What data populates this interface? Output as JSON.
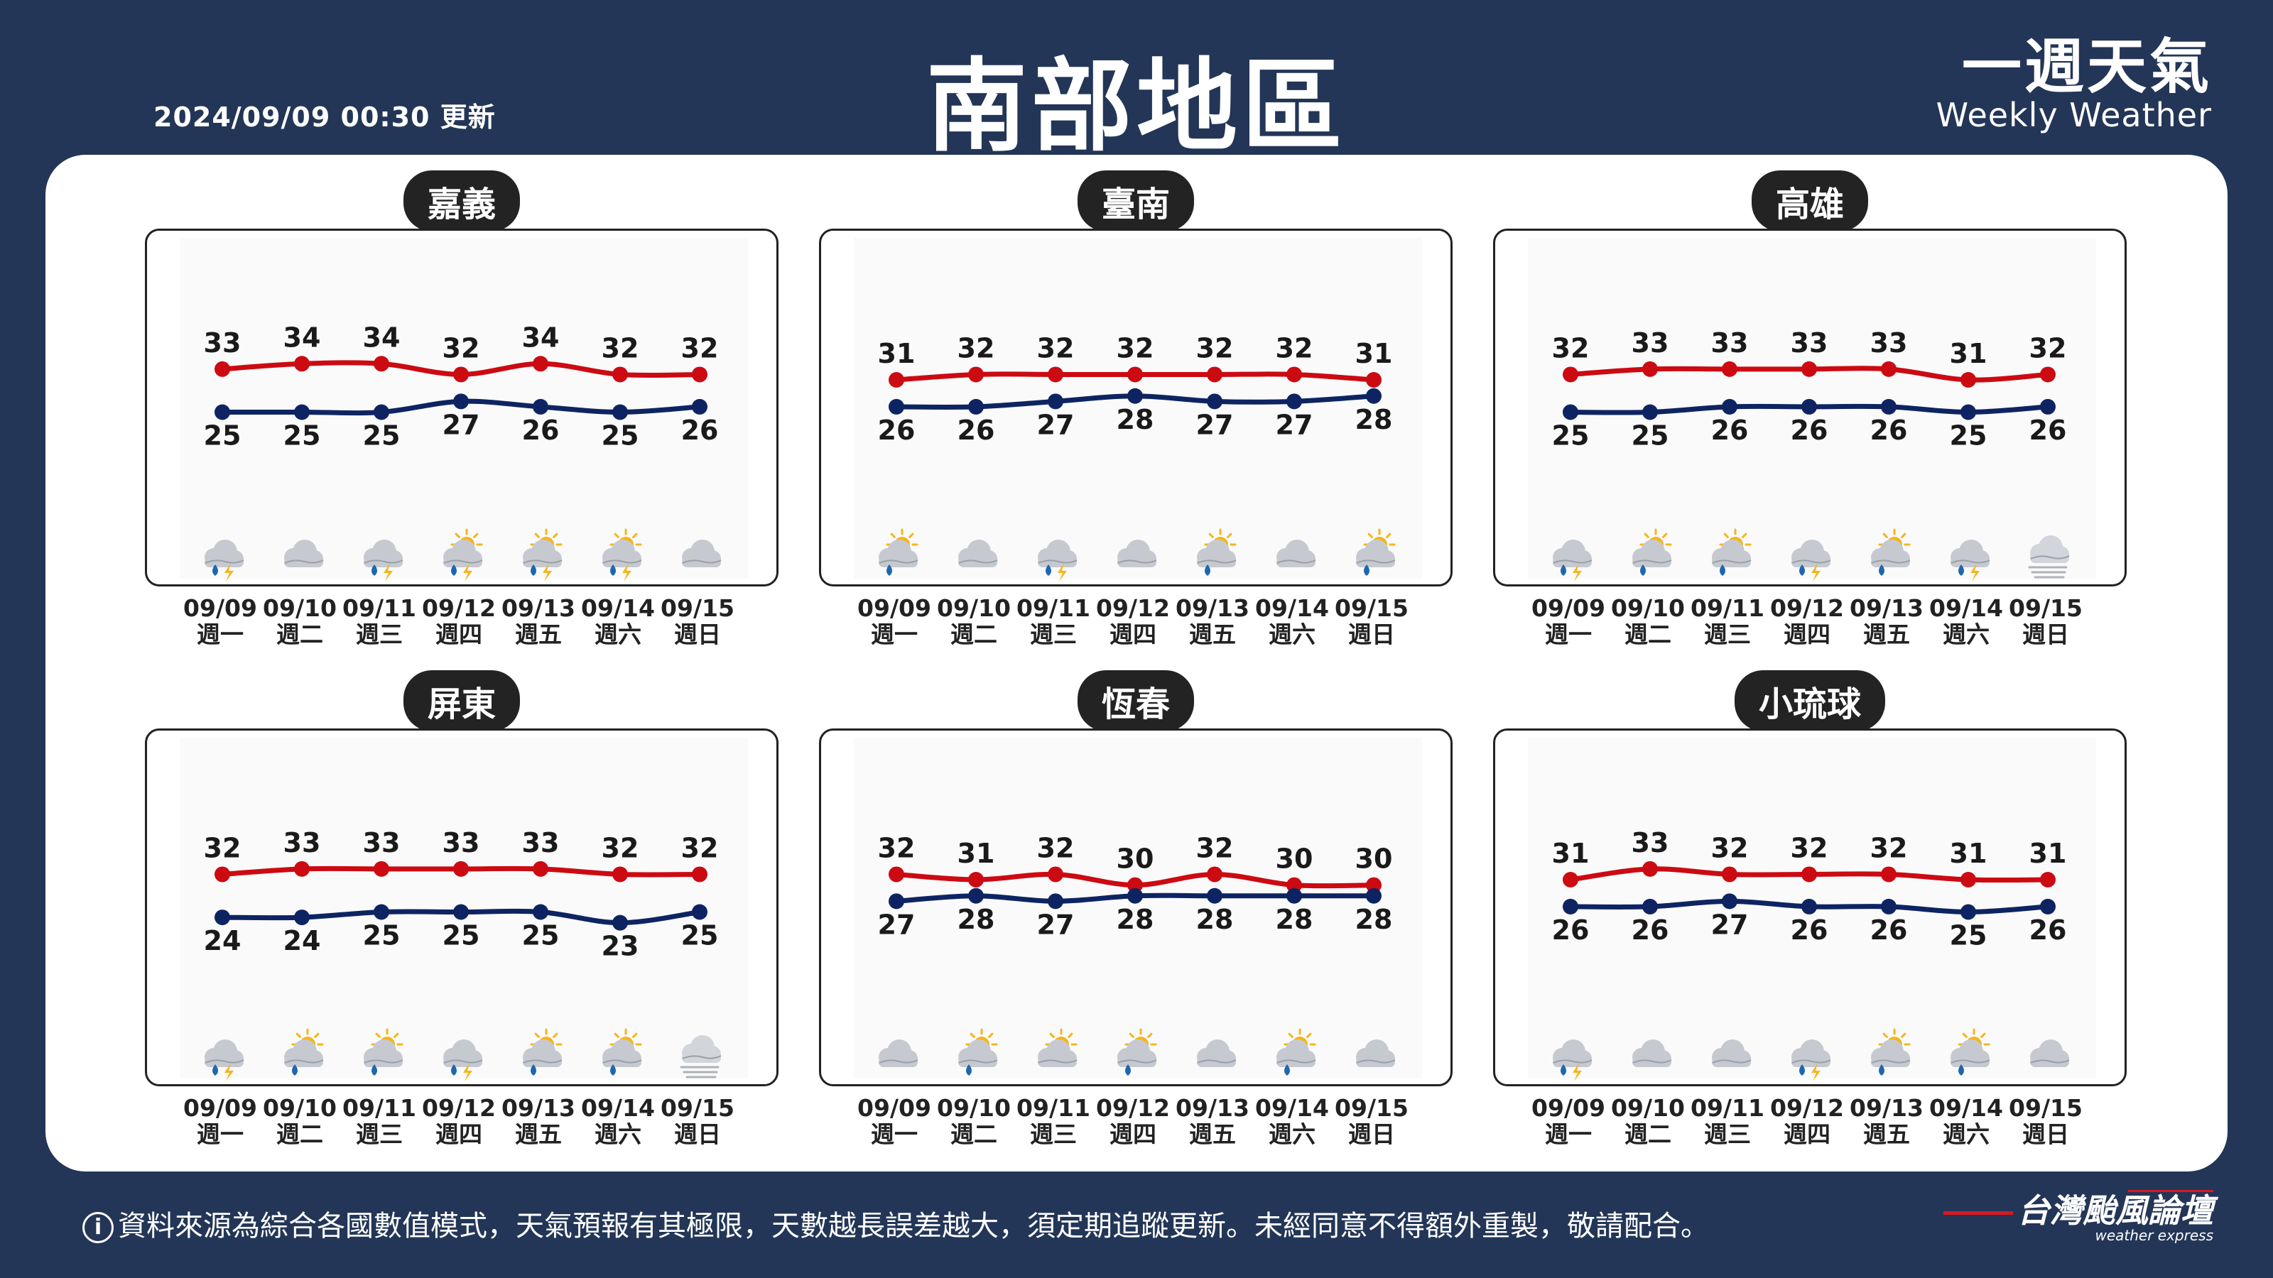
{
  "header": {
    "updated": "2024/09/09 00:30 更新",
    "title": "南部地區",
    "brand_zh": "一週天氣",
    "brand_en": "Weekly Weather"
  },
  "footer": {
    "info_icon": "i",
    "note": "資料來源為綜合各國數值模式，天氣預報有其極限，天數越長誤差越大，須定期追蹤更新。未經同意不得額外重製，敬請配合。",
    "logo": "台灣颱風論壇",
    "logo_sub": "weather express"
  },
  "colors": {
    "background": "#233657",
    "high_line": "#cc0a12",
    "low_line": "#0e2462",
    "title_pill": "#232323"
  },
  "chart_data": [
    {
      "type": "line",
      "title": "嘉義",
      "x": [
        "09/09",
        "09/10",
        "09/11",
        "09/12",
        "09/13",
        "09/14",
        "09/15"
      ],
      "weekday": [
        "週一",
        "週二",
        "週三",
        "週四",
        "週五",
        "週六",
        "週日"
      ],
      "series": [
        {
          "values": [
            33,
            34,
            34,
            32,
            34,
            32,
            32
          ]
        },
        {
          "values": [
            25,
            25,
            25,
            27,
            26,
            25,
            26
          ]
        }
      ],
      "icons": [
        "thunder-rain-icon",
        "cloudy-icon",
        "thunder-rain-icon",
        "sun-thunder-rain-icon",
        "sun-thunder-rain-icon",
        "sun-thunder-rain-icon",
        "cloudy-icon"
      ]
    },
    {
      "type": "line",
      "title": "臺南",
      "x": [
        "09/09",
        "09/10",
        "09/11",
        "09/12",
        "09/13",
        "09/14",
        "09/15"
      ],
      "weekday": [
        "週一",
        "週二",
        "週三",
        "週四",
        "週五",
        "週六",
        "週日"
      ],
      "series": [
        {
          "values": [
            31,
            32,
            32,
            32,
            32,
            32,
            31
          ]
        },
        {
          "values": [
            26,
            26,
            27,
            28,
            27,
            27,
            28
          ]
        }
      ],
      "icons": [
        "sun-rain-icon",
        "cloudy-icon",
        "thunder-rain-icon",
        "cloudy-icon",
        "sun-rain-icon",
        "cloudy-icon",
        "sun-rain-icon"
      ]
    },
    {
      "type": "line",
      "title": "高雄",
      "x": [
        "09/09",
        "09/10",
        "09/11",
        "09/12",
        "09/13",
        "09/14",
        "09/15"
      ],
      "weekday": [
        "週一",
        "週二",
        "週三",
        "週四",
        "週五",
        "週六",
        "週日"
      ],
      "series": [
        {
          "values": [
            32,
            33,
            33,
            33,
            33,
            31,
            32
          ]
        },
        {
          "values": [
            25,
            25,
            26,
            26,
            26,
            25,
            26
          ]
        }
      ],
      "icons": [
        "thunder-rain-icon",
        "sun-rain-icon",
        "sun-rain-icon",
        "thunder-rain-icon",
        "sun-rain-icon",
        "thunder-rain-icon",
        "fog-icon"
      ]
    },
    {
      "type": "line",
      "title": "屏東",
      "x": [
        "09/09",
        "09/10",
        "09/11",
        "09/12",
        "09/13",
        "09/14",
        "09/15"
      ],
      "weekday": [
        "週一",
        "週二",
        "週三",
        "週四",
        "週五",
        "週六",
        "週日"
      ],
      "series": [
        {
          "values": [
            32,
            33,
            33,
            33,
            33,
            32,
            32
          ]
        },
        {
          "values": [
            24,
            24,
            25,
            25,
            25,
            23,
            25
          ]
        }
      ],
      "icons": [
        "thunder-rain-icon",
        "sun-rain-icon",
        "sun-rain-icon",
        "thunder-rain-icon",
        "sun-rain-icon",
        "sun-rain-icon",
        "fog-icon"
      ]
    },
    {
      "type": "line",
      "title": "恆春",
      "x": [
        "09/09",
        "09/10",
        "09/11",
        "09/12",
        "09/13",
        "09/14",
        "09/15"
      ],
      "weekday": [
        "週一",
        "週二",
        "週三",
        "週四",
        "週五",
        "週六",
        "週日"
      ],
      "series": [
        {
          "values": [
            32,
            31,
            32,
            30,
            32,
            30,
            30
          ]
        },
        {
          "values": [
            27,
            28,
            27,
            28,
            28,
            28,
            28
          ]
        }
      ],
      "icons": [
        "cloudy-icon",
        "sun-rain-icon",
        "sun-cloud-icon",
        "sun-rain-icon",
        "cloudy-icon",
        "sun-rain-icon",
        "cloudy-icon"
      ]
    },
    {
      "type": "line",
      "title": "小琉球",
      "x": [
        "09/09",
        "09/10",
        "09/11",
        "09/12",
        "09/13",
        "09/14",
        "09/15"
      ],
      "weekday": [
        "週一",
        "週二",
        "週三",
        "週四",
        "週五",
        "週六",
        "週日"
      ],
      "series": [
        {
          "values": [
            31,
            33,
            32,
            32,
            32,
            31,
            31
          ]
        },
        {
          "values": [
            26,
            26,
            27,
            26,
            26,
            25,
            26
          ]
        }
      ],
      "icons": [
        "thunder-rain-icon",
        "cloudy-icon",
        "cloudy-icon",
        "thunder-rain-icon",
        "sun-rain-icon",
        "sun-rain-icon",
        "cloudy-icon"
      ]
    }
  ]
}
